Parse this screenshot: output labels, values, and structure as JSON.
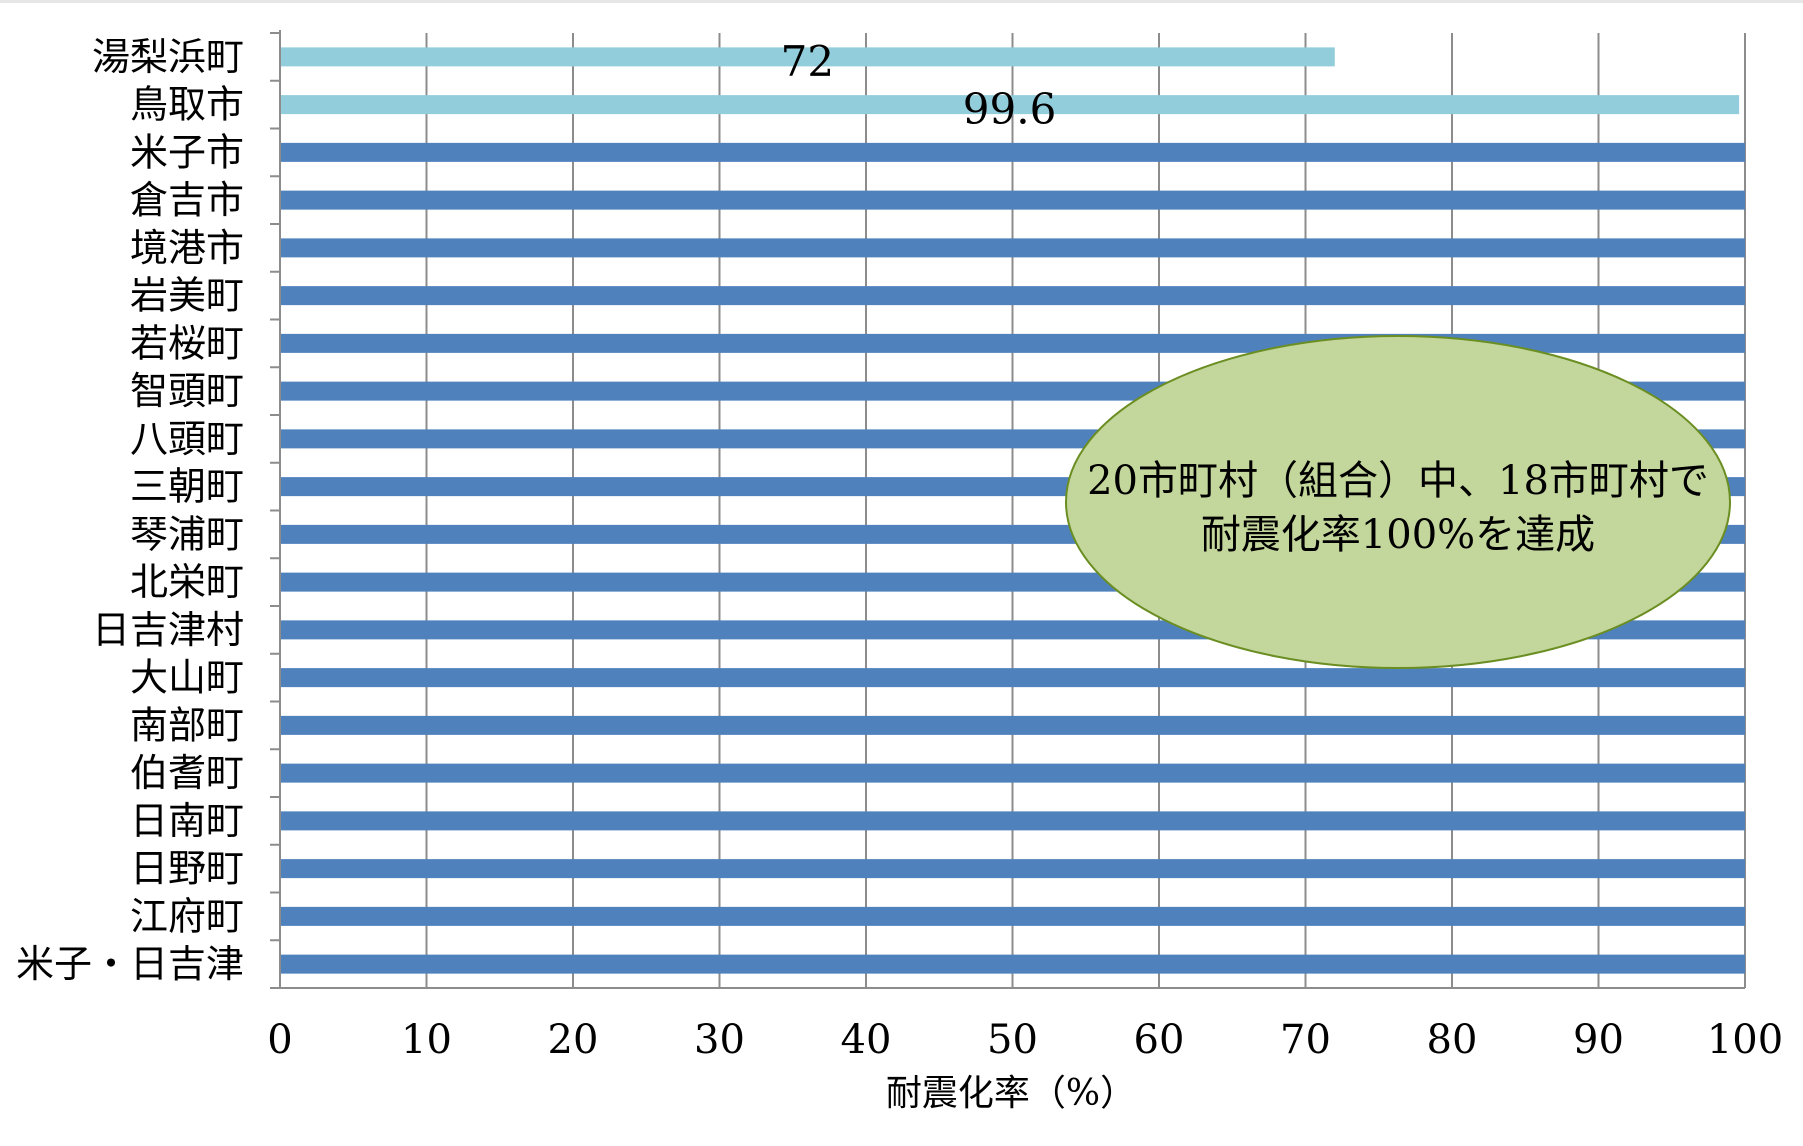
{
  "chart_data": {
    "type": "bar",
    "orientation": "horizontal",
    "categories": [
      "湯梨浜町",
      "鳥取市",
      "米子市",
      "倉吉市",
      "境港市",
      "岩美町",
      "若桜町",
      "智頭町",
      "八頭町",
      "三朝町",
      "琴浦町",
      "北栄町",
      "日吉津村",
      "大山町",
      "南部町",
      "伯耆町",
      "日南町",
      "日野町",
      "江府町",
      "米子・日吉津"
    ],
    "values": [
      72,
      99.6,
      100,
      100,
      100,
      100,
      100,
      100,
      100,
      100,
      100,
      100,
      100,
      100,
      100,
      100,
      100,
      100,
      100,
      100
    ],
    "data_labels": [
      "72",
      "99.6",
      "",
      "",
      "",
      "",
      "",
      "",
      "",
      "",
      "",
      "",
      "",
      "",
      "",
      "",
      "",
      "",
      "",
      ""
    ],
    "highlight_colors": [
      "#92CDDC",
      "#92CDDC"
    ],
    "bar_color": "#4F81BD",
    "xlabel": "耐震化率（%）",
    "xlim": [
      0,
      100
    ],
    "xticks": [
      "0",
      "10",
      "20",
      "30",
      "40",
      "50",
      "60",
      "70",
      "80",
      "90",
      "100"
    ],
    "grid": "vertical",
    "legend": "none",
    "annotation": {
      "lines": [
        "20市町村（組合）中、18市町村で",
        "耐震化率100%を達成"
      ],
      "fill": "#C3D69B",
      "stroke": "#6B8E23"
    }
  }
}
